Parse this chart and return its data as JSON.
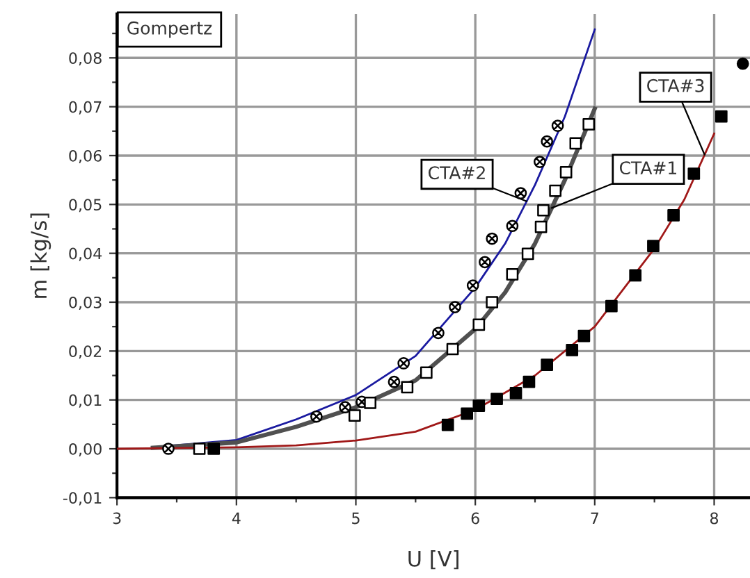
{
  "chart_data": {
    "type": "scatter",
    "xlabel": "U [V]",
    "ylabel": "m [kg/s]",
    "annotations": [
      "Gompertz"
    ],
    "xlim": [
      3,
      8.3
    ],
    "ylim": [
      -0.01,
      0.089
    ],
    "xticks": [
      3,
      {
        "value": 3.5,
        "label": null
      },
      4,
      {
        "value": 4.5,
        "label": null
      },
      5,
      {
        "value": 5.5,
        "label": null
      },
      6,
      {
        "value": 6.5,
        "label": null
      },
      7,
      {
        "value": 7.5,
        "label": null
      },
      8
    ],
    "yticks": [
      {
        "value": -0.01,
        "label": "-0,01"
      },
      {
        "value": -0.005,
        "label": null
      },
      {
        "value": 0,
        "label": "0,00"
      },
      {
        "value": 0.005,
        "label": null
      },
      {
        "value": 0.01,
        "label": "0,01"
      },
      {
        "value": 0.015,
        "label": null
      },
      {
        "value": 0.02,
        "label": "0,02"
      },
      {
        "value": 0.025,
        "label": null
      },
      {
        "value": 0.03,
        "label": "0,03"
      },
      {
        "value": 0.035,
        "label": null
      },
      {
        "value": 0.04,
        "label": "0,04"
      },
      {
        "value": 0.045,
        "label": null
      },
      {
        "value": 0.05,
        "label": "0,05"
      },
      {
        "value": 0.055,
        "label": null
      },
      {
        "value": 0.06,
        "label": "0,06"
      },
      {
        "value": 0.065,
        "label": null
      },
      {
        "value": 0.07,
        "label": "0,07"
      },
      {
        "value": 0.075,
        "label": null
      },
      {
        "value": 0.08,
        "label": "0,08"
      },
      {
        "value": 0.085,
        "label": null
      }
    ],
    "grid": true,
    "legend": false,
    "series": [
      {
        "marker": "cross",
        "color": "#ffffff",
        "x": [
          3.43,
          4.67,
          4.91,
          5.05,
          5.32,
          5.4,
          5.69,
          5.83,
          5.98,
          6.08,
          6.14,
          6.31,
          6.38,
          6.54,
          6.6,
          6.69
        ],
        "values": [
          0.0,
          0.0066,
          0.0085,
          0.0096,
          0.0137,
          0.0175,
          0.0237,
          0.029,
          0.0334,
          0.0382,
          0.043,
          0.0456,
          0.0523,
          0.0587,
          0.0629,
          0.0661
        ]
      },
      {
        "marker": "square",
        "color": "#ffffff",
        "x": [
          3.69,
          4.99,
          5.12,
          5.43,
          5.59,
          5.81,
          6.03,
          6.14,
          6.31,
          6.44,
          6.55,
          6.57,
          6.67,
          6.76,
          6.84,
          6.95
        ],
        "values": [
          0.0,
          0.0068,
          0.0094,
          0.0126,
          0.0156,
          0.0204,
          0.0254,
          0.03,
          0.0357,
          0.0399,
          0.0454,
          0.0488,
          0.0528,
          0.0566,
          0.0625,
          0.0664
        ]
      },
      {
        "marker": "square",
        "color": "#000000",
        "x": [
          3.81,
          5.77,
          5.93,
          6.03,
          6.18,
          6.34,
          6.45,
          6.6,
          6.81,
          6.91,
          7.14,
          7.34,
          7.49,
          7.66,
          7.83,
          8.06
        ],
        "values": [
          0.0,
          0.0049,
          0.0072,
          0.0088,
          0.0102,
          0.0114,
          0.0137,
          0.0172,
          0.0202,
          0.0231,
          0.0292,
          0.0355,
          0.0415,
          0.0478,
          0.0563,
          0.068
        ]
      },
      {
        "marker": "circle",
        "color": "#000000",
        "x": [
          8.24
        ],
        "values": [
          0.0788
        ]
      },
      {
        "type": "line",
        "name": "CTA#2",
        "color": "#1a1aa0",
        "x": [
          3.3,
          4.0,
          4.5,
          5.0,
          5.5,
          6.0,
          6.25,
          6.5,
          6.75,
          7.0
        ],
        "values": [
          0.0003,
          0.0018,
          0.006,
          0.011,
          0.019,
          0.033,
          0.042,
          0.054,
          0.068,
          0.0858
        ]
      },
      {
        "type": "line",
        "name": "CTA#1",
        "color": "#505050",
        "x": [
          3.3,
          4.0,
          4.5,
          5.0,
          5.5,
          6.0,
          6.25,
          6.5,
          6.75,
          7.0
        ],
        "values": [
          0.0002,
          0.0013,
          0.0045,
          0.0085,
          0.014,
          0.0245,
          0.032,
          0.042,
          0.055,
          0.0696
        ]
      },
      {
        "type": "line",
        "name": "CTA#3",
        "color": "#a01818",
        "x": [
          3.0,
          4.0,
          4.5,
          5.0,
          5.5,
          6.0,
          6.5,
          7.0,
          7.5,
          7.75,
          8.0
        ],
        "values": [
          0.0,
          0.0003,
          0.0007,
          0.0017,
          0.0035,
          0.008,
          0.015,
          0.025,
          0.041,
          0.051,
          0.0645
        ]
      }
    ]
  }
}
